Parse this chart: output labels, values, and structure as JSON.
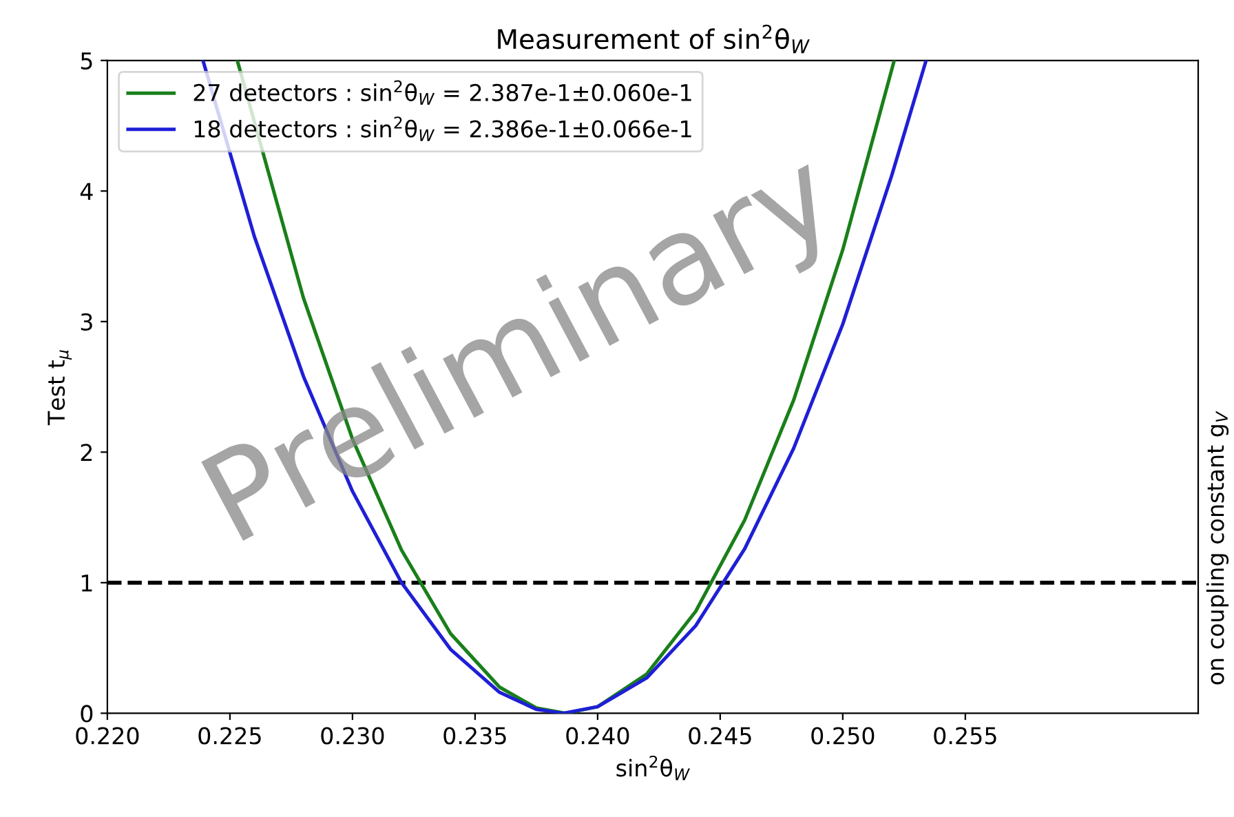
{
  "chart_data": {
    "type": "line",
    "title": "Measurement of sin$^{2}$θ$_{W}$",
    "xlabel": "sin$^{2}$θ$_{W}$",
    "ylabel": "Test t$_{μ}$",
    "series": [
      {
        "name": "27 detectors : sin$^{2}$θ$_{W}$ = 2.387e-1±0.060e-1",
        "color": "#1a7f1a",
        "x": [
          0.2253,
          0.228,
          0.23,
          0.232,
          0.234,
          0.236,
          0.2375,
          0.2387,
          0.24,
          0.242,
          0.244,
          0.246,
          0.248,
          0.25,
          0.2521
        ],
        "values": [
          5.0,
          3.18,
          2.1,
          1.25,
          0.61,
          0.2,
          0.04,
          0,
          0.05,
          0.3,
          0.78,
          1.48,
          2.4,
          3.55,
          5.0
        ]
      },
      {
        "name": "18 detectors : sin$^{2}$θ$_{W}$ = 2.386e-1±0.066e-1",
        "color": "#1f1fd6",
        "x": [
          0.2239,
          0.226,
          0.228,
          0.23,
          0.232,
          0.234,
          0.236,
          0.2375,
          0.2386,
          0.24,
          0.242,
          0.244,
          0.246,
          0.248,
          0.25,
          0.252,
          0.2534
        ],
        "values": [
          5.0,
          3.65,
          2.58,
          1.7,
          1.0,
          0.49,
          0.16,
          0.03,
          0,
          0.05,
          0.27,
          0.67,
          1.26,
          2.03,
          2.98,
          4.12,
          5.0
        ]
      }
    ],
    "ref_lines": [
      {
        "axis": "y",
        "value": 1,
        "color": "#000000",
        "line_style": "dashed"
      }
    ],
    "xlim": [
      0.22,
      0.2645
    ],
    "xticks": [
      {
        "value": 0.22,
        "label": "0.220"
      },
      {
        "value": 0.225,
        "label": "0.225"
      },
      {
        "value": 0.23,
        "label": "0.230"
      },
      {
        "value": 0.235,
        "label": "0.235"
      },
      {
        "value": 0.24,
        "label": "0.240"
      },
      {
        "value": 0.245,
        "label": "0.245"
      },
      {
        "value": 0.25,
        "label": "0.250"
      },
      {
        "value": 0.255,
        "label": "0.255"
      }
    ],
    "ylim": [
      0,
      5
    ],
    "yticks": [
      0,
      1,
      2,
      3,
      4,
      5
    ],
    "legend": "top left",
    "grid": false,
    "marker": "none",
    "line_style": "solid",
    "annotations": [
      "Preliminary",
      "on coupling constant g$_{V}$"
    ]
  }
}
